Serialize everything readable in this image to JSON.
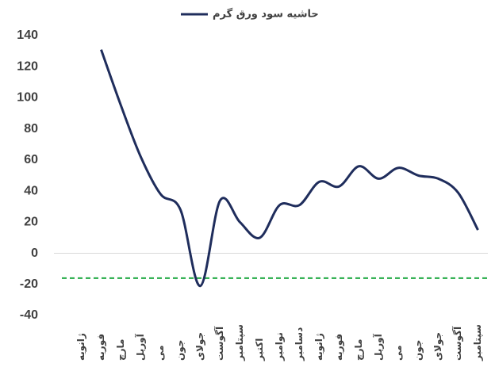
{
  "chart_data": {
    "type": "line",
    "title": "حاشیه سود ورق گرم",
    "categories": [
      "ژانویه",
      "فوریه",
      "مارچ",
      "آوریل",
      "می",
      "جون",
      "جولای",
      "آگوست",
      "سپتامبر",
      "اکتبر",
      "نوامبر",
      "دسامبر",
      "ژانویه",
      "فوریه",
      "مارچ",
      "آوریل",
      "می",
      "جون",
      "جولای",
      "آگوست",
      "سپتامبر"
    ],
    "series": [
      {
        "name": "حاشیه سود ورق گرم",
        "color": "#1f2d5c",
        "values": [
          null,
          131,
          95,
          62,
          38,
          28,
          -21,
          34,
          20,
          10,
          31,
          31,
          46,
          43,
          56,
          48,
          55,
          50,
          48,
          39,
          15
        ]
      }
    ],
    "reference_line": {
      "value": -16,
      "color": "#22aa44"
    },
    "ylim": [
      -40,
      140
    ],
    "yticks": [
      -40,
      -20,
      0,
      20,
      40,
      60,
      80,
      100,
      120,
      140
    ],
    "grid": false
  }
}
